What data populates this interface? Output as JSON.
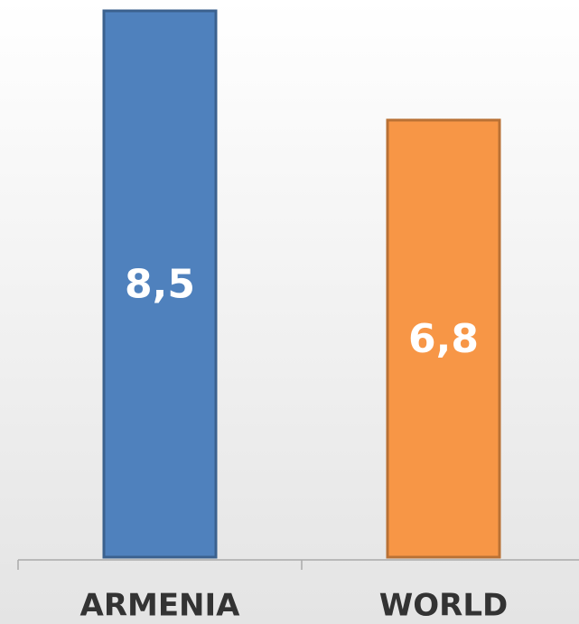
{
  "chart_data": {
    "type": "bar",
    "categories": [
      "ARMENIA",
      "WORLD"
    ],
    "values": [
      8.5,
      6.8
    ],
    "value_labels": [
      "8,5",
      "6,8"
    ],
    "colors": [
      "#4f81bd",
      "#f79646"
    ]
  }
}
